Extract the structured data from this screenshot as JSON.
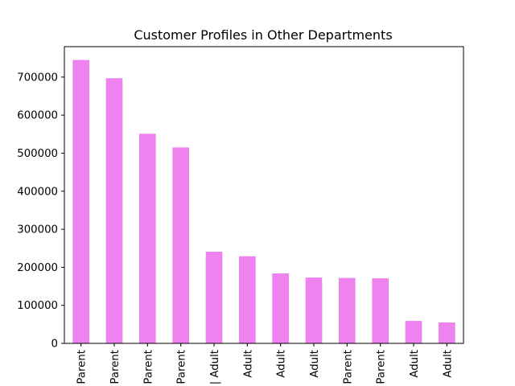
{
  "chart_data": {
    "type": "bar",
    "title": "Customer Profiles in Other Departments",
    "xlabel": "",
    "ylabel": "",
    "categories": [
      "Parent",
      "Parent",
      "Parent",
      "Parent",
      "| Adult",
      "Adult",
      "Adult",
      "Adult",
      "Parent",
      "Parent",
      "Adult",
      "Adult"
    ],
    "values": [
      745000,
      697000,
      551000,
      515000,
      241000,
      229000,
      184000,
      173000,
      172000,
      171000,
      59000,
      55000
    ],
    "ylim": [
      0,
      780000
    ],
    "yticks": [
      0,
      100000,
      200000,
      300000,
      400000,
      500000,
      600000,
      700000
    ],
    "ytick_labels": [
      "0",
      "100000",
      "200000",
      "300000",
      "400000",
      "500000",
      "600000",
      "700000"
    ],
    "bar_color": "#ee82ee",
    "grid": false,
    "legend": "none"
  }
}
